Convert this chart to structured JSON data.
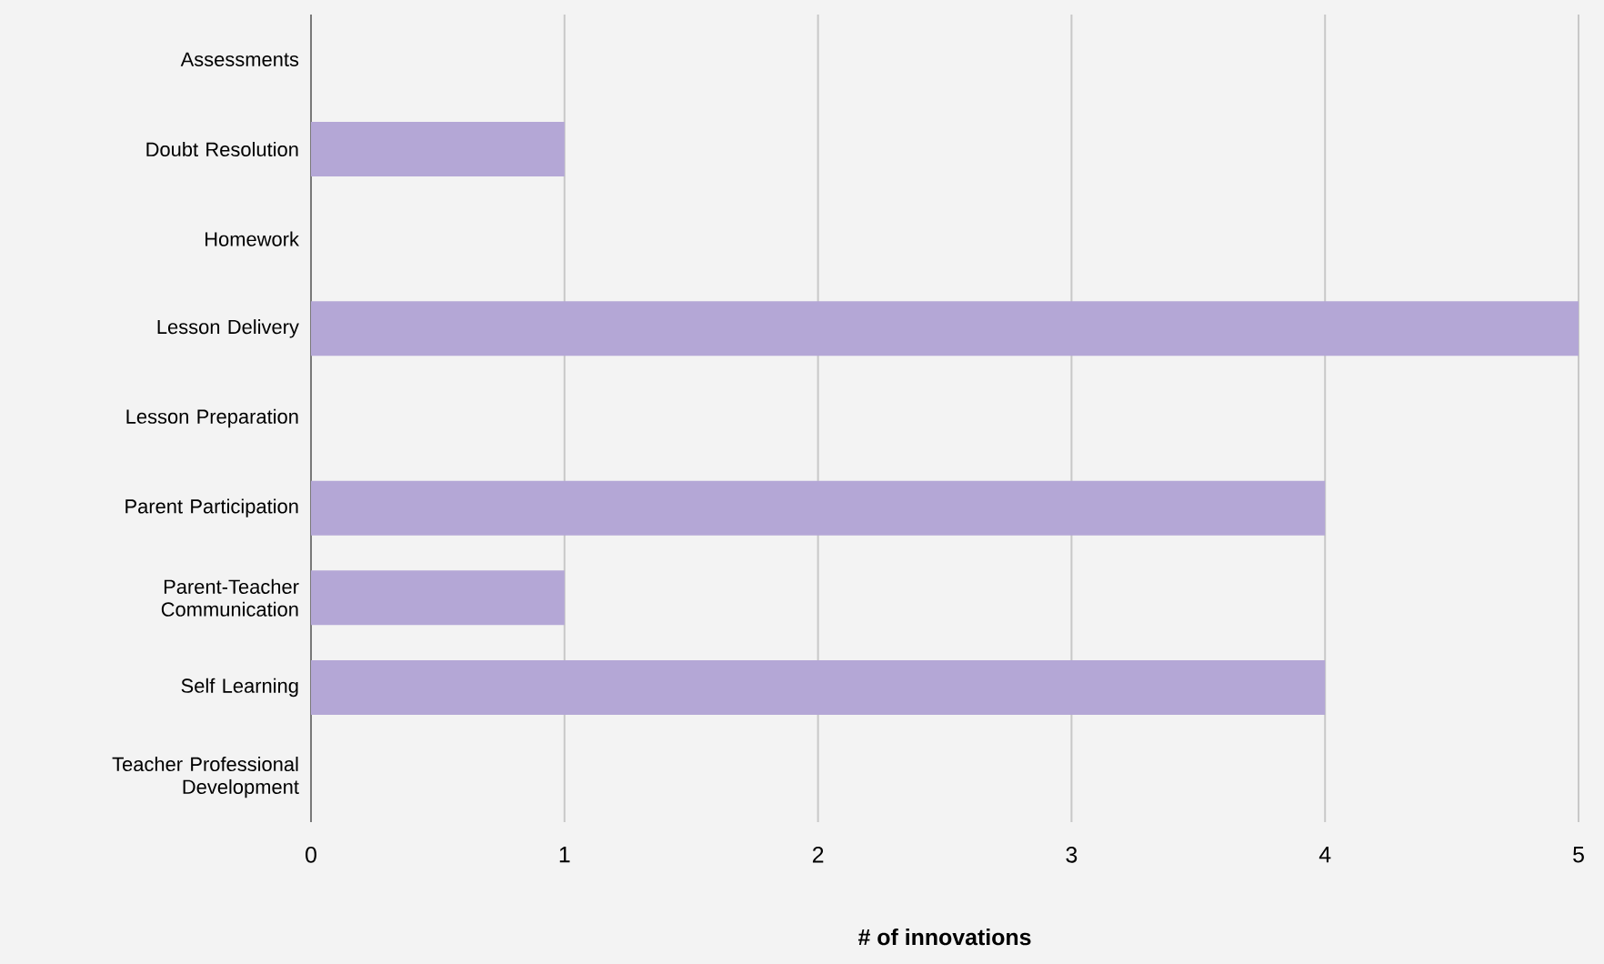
{
  "chart_data": {
    "type": "bar",
    "orientation": "horizontal",
    "xlabel": "# of innovations",
    "categories": [
      "Assessments",
      "Doubt Resolution",
      "Homework",
      "Lesson Delivery",
      "Lesson Preparation",
      "Parent Participation",
      "Parent-Teacher Communication",
      "Self Learning",
      "Teacher Professional Development"
    ],
    "values": [
      0,
      1,
      0,
      5,
      0,
      4,
      1,
      4,
      0
    ],
    "color": "#b4a7d6",
    "xlim": [
      0,
      5
    ],
    "xticks": [
      0,
      1,
      2,
      3,
      4,
      5
    ],
    "grid": "x"
  }
}
